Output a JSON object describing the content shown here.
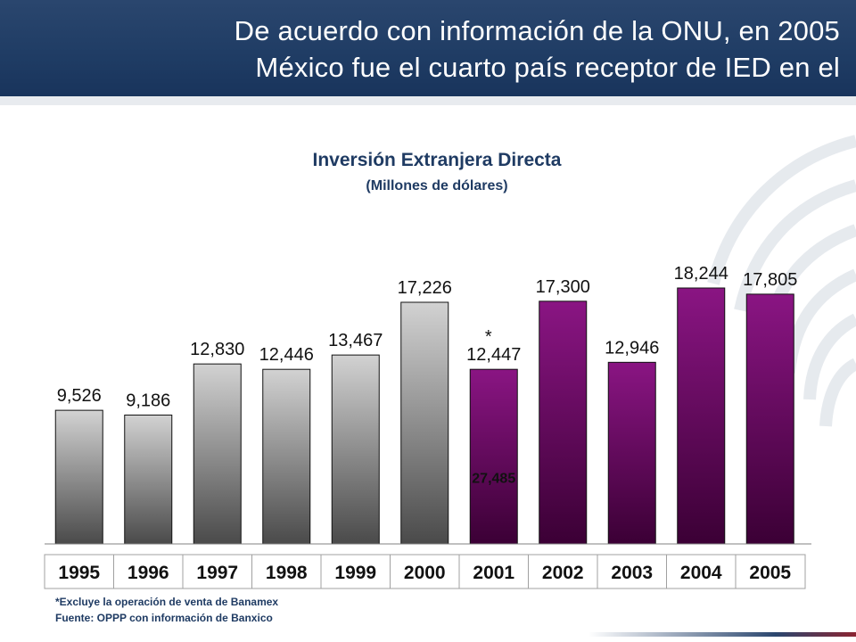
{
  "header": {
    "line1": "De acuerdo con información de la ONU, en 2005",
    "line2": "México fue el cuarto país receptor de IED en el"
  },
  "colors": {
    "header_bg": "#1f3c64",
    "gray_bar_top": "#d2d2d2",
    "gray_bar_bottom": "#4a4a4a",
    "purple_bar_top": "#8a1583",
    "purple_bar_bottom": "#3b0035",
    "text_blue": "#1f3b63"
  },
  "footnotes": {
    "note1": "*Excluye la operación de venta de Banamex",
    "note2": "Fuente: OPPP con información de Banxico"
  },
  "chart_data": {
    "type": "bar",
    "title": "Inversión Extranjera Directa",
    "subtitle": "(Millones de dólares)",
    "categories": [
      "1995",
      "1996",
      "1997",
      "1998",
      "1999",
      "2000",
      "2001",
      "2002",
      "2003",
      "2004",
      "2005"
    ],
    "values": [
      9526,
      9186,
      12830,
      12446,
      13467,
      17226,
      12447,
      17300,
      12946,
      18244,
      17805
    ],
    "labels": [
      "9,526",
      "9,186",
      "12,830",
      "12,446",
      "13,467",
      "17,226",
      "12,447",
      "17,300",
      "12,946",
      "18,244",
      "17,805"
    ],
    "bar_colors": [
      "gray",
      "gray",
      "gray",
      "gray",
      "gray",
      "gray",
      "purple",
      "purple",
      "purple",
      "purple",
      "purple"
    ],
    "extra_2001": {
      "category": "2001",
      "value": 27485,
      "label": "27,485",
      "marker": "*"
    },
    "xlabel": "",
    "ylabel": "",
    "ylim": [
      0,
      27485
    ],
    "grid": false,
    "legend": "none"
  }
}
